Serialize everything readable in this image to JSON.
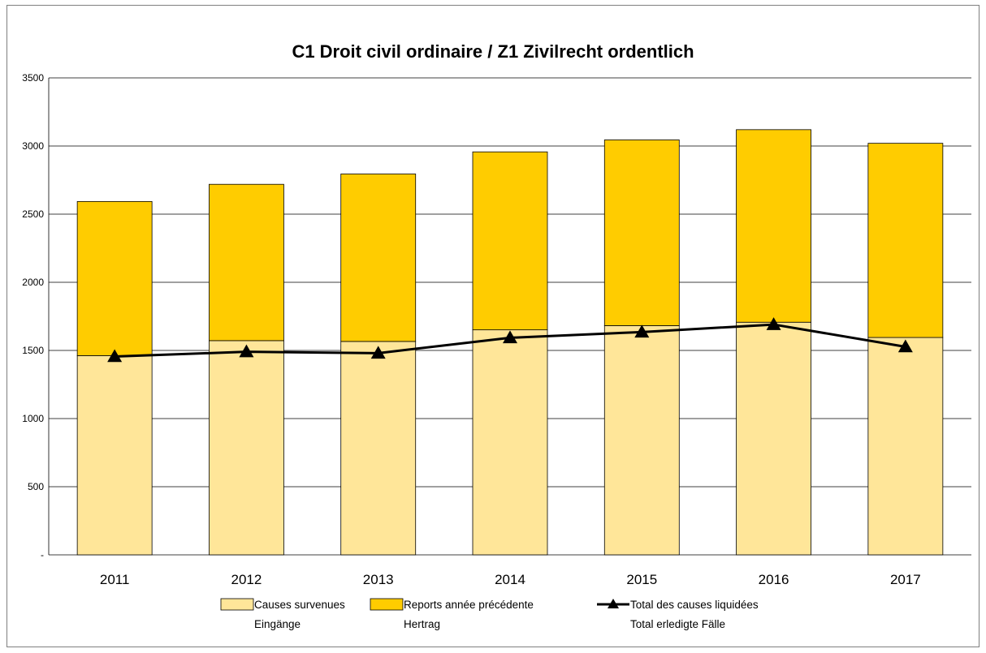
{
  "chart_data": {
    "type": "bar",
    "title": "C1 Droit civil ordinaire / Z1 Zivilrecht ordentlich",
    "categories": [
      "2011",
      "2012",
      "2013",
      "2014",
      "2015",
      "2016",
      "2017"
    ],
    "ylim": [
      0,
      3500
    ],
    "yticks": [
      0,
      500,
      1000,
      1500,
      2000,
      2500,
      3000,
      3500
    ],
    "ytick_labels": [
      "-",
      "500",
      "1000",
      "1500",
      "2000",
      "2500",
      "3000",
      "3500"
    ],
    "grid": true,
    "legend_position": "bottom",
    "series": [
      {
        "name": "Causes survenues",
        "name_line2": "Eingänge",
        "kind": "stacked-bar",
        "color": "#FFE699",
        "values": [
          1462,
          1572,
          1566,
          1651,
          1682,
          1707,
          1595
        ]
      },
      {
        "name": "Reports année précédente",
        "name_line2": "Hertrag",
        "kind": "stacked-bar",
        "color": "#FFCC00",
        "values": [
          1131,
          1147,
          1229,
          1306,
          1363,
          1413,
          1425
        ]
      },
      {
        "name": "Total des causes liquidées",
        "name_line2": "Total erledigte Fälle",
        "kind": "line",
        "color": "#000000",
        "marker": "triangle",
        "values": [
          1455,
          1490,
          1480,
          1593,
          1635,
          1690,
          1527
        ]
      }
    ]
  }
}
